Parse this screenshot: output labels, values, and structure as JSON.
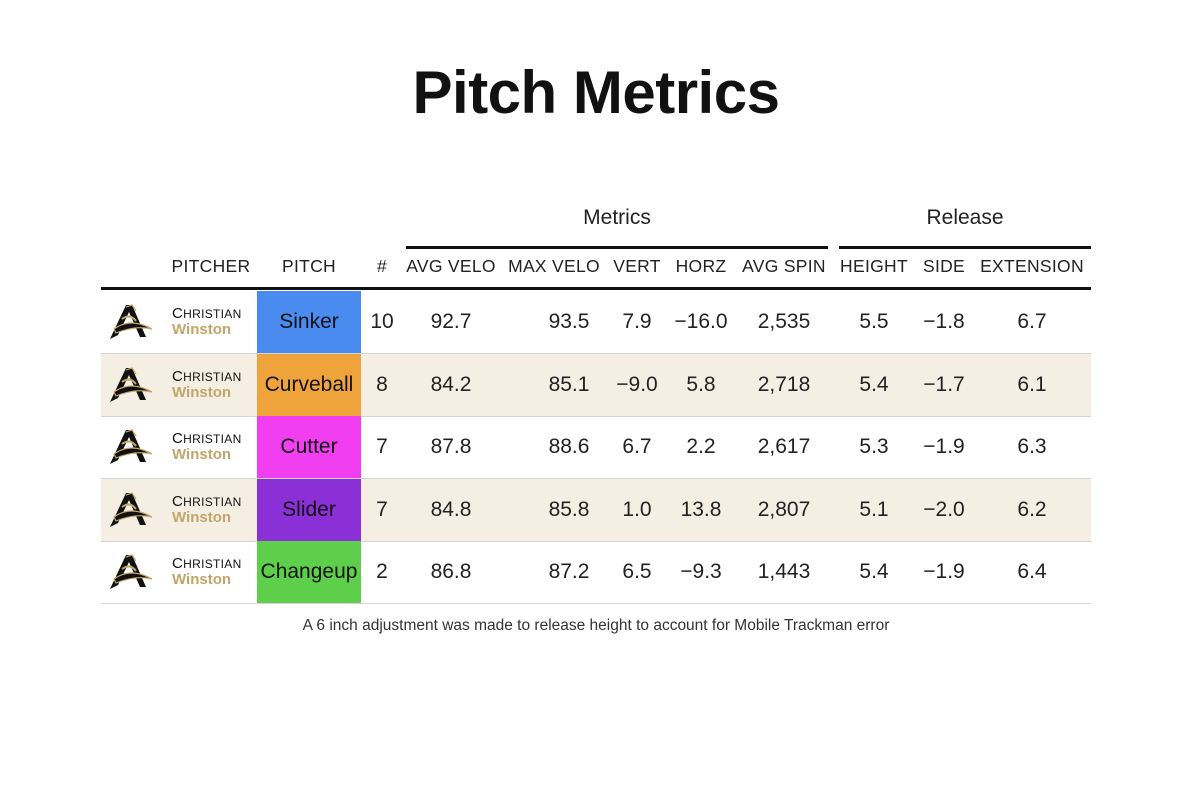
{
  "title": "Pitch Metrics",
  "groups": {
    "metrics": "Metrics",
    "release": "Release"
  },
  "columns": [
    "PITCHER",
    "PITCH",
    "#",
    "AVG VELO",
    "MAX VELO",
    "VERT",
    "HORZ",
    "AVG SPIN",
    "HEIGHT",
    "SIDE",
    "EXTENSION"
  ],
  "footnote": "A 6 inch adjustment was made to release height to account for Mobile Trackman error",
  "chart_data": {
    "type": "table",
    "title": "Pitch Metrics",
    "column_groups": [
      {
        "name": "Metrics",
        "columns": [
          "AVG VELO",
          "MAX VELO",
          "VERT",
          "HORZ",
          "AVG SPIN"
        ]
      },
      {
        "name": "Release",
        "columns": [
          "HEIGHT",
          "SIDE",
          "EXTENSION"
        ]
      }
    ],
    "rows": [
      {
        "first": "Christian",
        "last": "Winston",
        "pitch": "Sinker",
        "color": "#4a8bf0",
        "count": "10",
        "avg_velo": "92.7",
        "max_velo": "93.5",
        "vert": "7.9",
        "horz": "−16.0",
        "avg_spin": "2,535",
        "height": "5.5",
        "side": "−1.8",
        "extension": "6.7"
      },
      {
        "first": "Christian",
        "last": "Winston",
        "pitch": "Curveball",
        "color": "#eea33b",
        "count": "8",
        "avg_velo": "84.2",
        "max_velo": "85.1",
        "vert": "−9.0",
        "horz": "5.8",
        "avg_spin": "2,718",
        "height": "5.4",
        "side": "−1.7",
        "extension": "6.1"
      },
      {
        "first": "Christian",
        "last": "Winston",
        "pitch": "Cutter",
        "color": "#f03ef0",
        "count": "7",
        "avg_velo": "87.8",
        "max_velo": "88.6",
        "vert": "6.7",
        "horz": "2.2",
        "avg_spin": "2,617",
        "height": "5.3",
        "side": "−1.9",
        "extension": "6.3"
      },
      {
        "first": "Christian",
        "last": "Winston",
        "pitch": "Slider",
        "color": "#8b2fd6",
        "count": "7",
        "avg_velo": "84.8",
        "max_velo": "85.8",
        "vert": "1.0",
        "horz": "13.8",
        "avg_spin": "2,807",
        "height": "5.1",
        "side": "−2.0",
        "extension": "6.2"
      },
      {
        "first": "Christian",
        "last": "Winston",
        "pitch": "Changeup",
        "color": "#5dcf4a",
        "count": "2",
        "avg_velo": "86.8",
        "max_velo": "87.2",
        "vert": "6.5",
        "horz": "−9.3",
        "avg_spin": "1,443",
        "height": "5.4",
        "side": "−1.9",
        "extension": "6.4"
      }
    ]
  }
}
